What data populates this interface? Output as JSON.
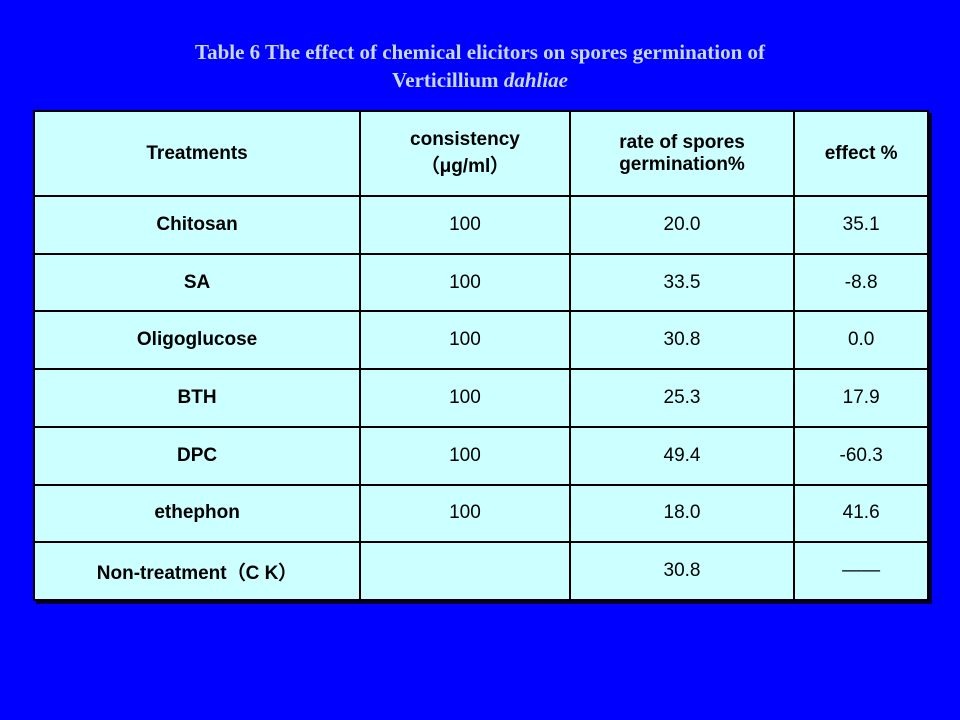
{
  "title": [
    "Table 6  The effect of chemical elicitors on spores germination of",
    "Verticillium",
    "dahliae"
  ],
  "table": {
    "header": [
      "Treatments",
      "consistency\n（μg/ml）",
      "rate of spores\ngermination%",
      "effect %"
    ],
    "rows": [
      [
        "Chitosan",
        "100",
        "20.0",
        "35.1"
      ],
      [
        "SA",
        "100",
        "33.5",
        "-8.8"
      ],
      [
        "Oligoglucose",
        "100",
        "30.8",
        "0.0"
      ],
      [
        "BTH",
        "100",
        "25.3",
        "17.9"
      ],
      [
        "DPC",
        "100",
        "49.4",
        "-60.3"
      ],
      [
        "ethephon",
        "100",
        "18.0",
        "41.6"
      ],
      [
        "Non-treatment（C K）",
        null,
        "30.8",
        "——"
      ]
    ]
  }
}
